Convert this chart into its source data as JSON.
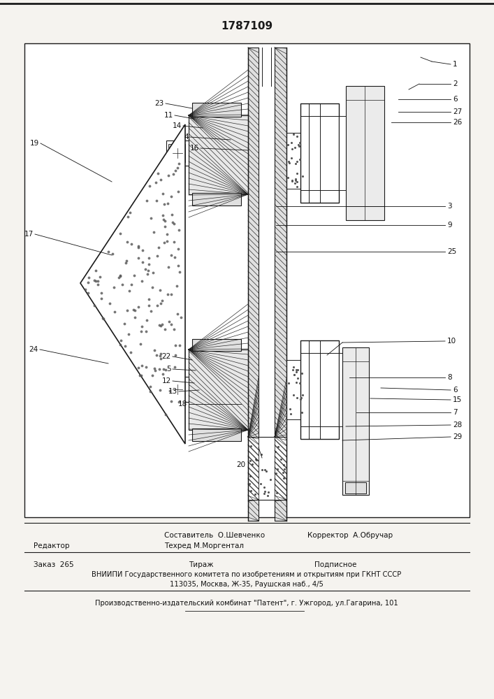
{
  "patent_number": "1787109",
  "bg_color": "#f5f3ef",
  "draw_bg": "#ffffff",
  "line_color": "#1a1a1a",
  "hatch_color": "#333333",
  "footer": {
    "editor_label": "Редактор",
    "compiler_label": "Составитель",
    "compiler_name": "О.Шевченко",
    "techred_label": "Техред",
    "techred_name": "М.Моргентал",
    "corrector_label": "Корректор",
    "corrector_name": "А.Обручар",
    "order_label": "Заказ",
    "order_num": "265",
    "tirazh_label": "Тираж",
    "podpisnoe_label": "Подписное",
    "vniip_line1": "ВНИИПИ Государственного комитета по изобретениям и открытиям при ГКНТ СССР",
    "vniip_line2": "113035, Москва, Ж-35, Раушская наб., 4/5",
    "factory_line": "Производственно-издательский комбинат \"Патент\", г. Ужгород, ул.Гагарина, 101"
  }
}
